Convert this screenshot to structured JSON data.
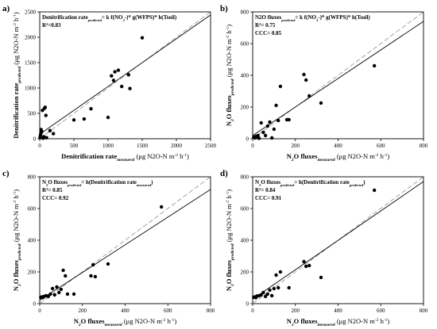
{
  "chart_data": [
    {
      "type": "scatter",
      "panel_label": "a)",
      "annotation_lines": [
        [
          {
            "t": "Denitrification rate"
          },
          {
            "t": "predicted",
            "sub": true
          },
          {
            "t": "= k f(NO"
          },
          {
            "t": "3",
            "sub": true
          },
          {
            "t": "-)* g(WFPS)* h(Tsoil)"
          }
        ],
        [
          {
            "t": "R"
          },
          {
            "t": "2",
            "sup": true
          },
          {
            "t": "=0.83"
          }
        ]
      ],
      "xlabel_parts": [
        {
          "t": "Denitrification rate"
        },
        {
          "t": "measured",
          "sub": true
        },
        {
          "t": " (μg N2O-N m",
          "unit": true
        },
        {
          "t": "-2",
          "sup": true,
          "unit": true
        },
        {
          "t": " h",
          "unit": true
        },
        {
          "t": "-1",
          "sup": true,
          "unit": true
        },
        {
          "t": ")",
          "unit": true
        }
      ],
      "ylabel_parts": [
        {
          "t": "Denitrification rate"
        },
        {
          "t": "predicted",
          "sub": true
        },
        {
          "t": " (μg N2O-N m",
          "unit": true
        },
        {
          "t": "-2",
          "sup": true,
          "unit": true
        },
        {
          "t": " h",
          "unit": true
        },
        {
          "t": "-1",
          "sup": true,
          "unit": true
        },
        {
          "t": ")",
          "unit": true
        }
      ],
      "xlim": [
        0,
        2500
      ],
      "ylim": [
        0,
        2500
      ],
      "xticks": [
        0,
        500,
        1000,
        1500,
        2000,
        2500
      ],
      "yticks": [
        0,
        500,
        1000,
        1500,
        2000,
        2500
      ],
      "points": [
        [
          5,
          20
        ],
        [
          10,
          60
        ],
        [
          15,
          100
        ],
        [
          20,
          180
        ],
        [
          30,
          140
        ],
        [
          50,
          10
        ],
        [
          60,
          40
        ],
        [
          40,
          560
        ],
        [
          70,
          600
        ],
        [
          80,
          620
        ],
        [
          100,
          20
        ],
        [
          90,
          460
        ],
        [
          150,
          160
        ],
        [
          200,
          100
        ],
        [
          500,
          370
        ],
        [
          650,
          390
        ],
        [
          750,
          590
        ],
        [
          1000,
          420
        ],
        [
          1050,
          1240
        ],
        [
          1080,
          1150
        ],
        [
          1100,
          1320
        ],
        [
          1150,
          1350
        ],
        [
          1200,
          1030
        ],
        [
          1300,
          1260
        ],
        [
          1320,
          990
        ],
        [
          1500,
          1990
        ]
      ],
      "fit_line": [
        [
          0,
          90
        ],
        [
          2500,
          2440
        ]
      ],
      "one_to_one": [
        [
          0,
          0
        ],
        [
          2500,
          2500
        ]
      ]
    },
    {
      "type": "scatter",
      "panel_label": "b)",
      "annotation_lines": [
        [
          {
            "t": "N2O fluxes"
          },
          {
            "t": "predicted",
            "sub": true
          },
          {
            "t": "= k f(NO"
          },
          {
            "t": "3",
            "sub": true
          },
          {
            "t": "-)* g(WFPS)* h(Tsoil)"
          }
        ],
        [
          {
            "t": "R"
          },
          {
            "t": "2",
            "sup": true
          },
          {
            "t": "= 0.75"
          }
        ],
        [
          {
            "t": "CCC= 0.85"
          }
        ]
      ],
      "xlabel_parts": [
        {
          "t": "N"
        },
        {
          "t": "2",
          "sub": true
        },
        {
          "t": "O fluxes"
        },
        {
          "t": "measured",
          "sub": true
        },
        {
          "t": " (μg N2O-N m",
          "unit": true
        },
        {
          "t": "-2",
          "sup": true,
          "unit": true
        },
        {
          "t": " h",
          "unit": true
        },
        {
          "t": "-1",
          "sup": true,
          "unit": true
        },
        {
          "t": ")",
          "unit": true
        }
      ],
      "ylabel_parts": [
        {
          "t": "N"
        },
        {
          "t": "2",
          "sub": true
        },
        {
          "t": "O fluxes"
        },
        {
          "t": "predicted",
          "sub": true
        },
        {
          "t": " (μg N2O-N m",
          "unit": true
        },
        {
          "t": "-2",
          "sup": true,
          "unit": true
        },
        {
          "t": " h",
          "unit": true
        },
        {
          "t": "-1",
          "sup": true,
          "unit": true
        },
        {
          "t": ")",
          "unit": true
        }
      ],
      "xlim": [
        0,
        800
      ],
      "ylim": [
        0,
        800
      ],
      "xticks": [
        0,
        200,
        400,
        600,
        800
      ],
      "yticks": [
        0,
        200,
        400,
        600,
        800
      ],
      "points": [
        [
          5,
          10
        ],
        [
          10,
          5
        ],
        [
          15,
          15
        ],
        [
          20,
          8
        ],
        [
          25,
          20
        ],
        [
          30,
          3
        ],
        [
          40,
          100
        ],
        [
          50,
          40
        ],
        [
          60,
          20
        ],
        [
          70,
          80
        ],
        [
          80,
          105
        ],
        [
          90,
          5
        ],
        [
          100,
          60
        ],
        [
          110,
          210
        ],
        [
          120,
          115
        ],
        [
          130,
          330
        ],
        [
          160,
          120
        ],
        [
          170,
          120
        ],
        [
          240,
          405
        ],
        [
          250,
          370
        ],
        [
          265,
          270
        ],
        [
          320,
          225
        ],
        [
          570,
          460
        ]
      ],
      "fit_line": [
        [
          0,
          20
        ],
        [
          800,
          740
        ]
      ],
      "one_to_one": [
        [
          0,
          0
        ],
        [
          800,
          800
        ]
      ]
    },
    {
      "type": "scatter",
      "panel_label": "c)",
      "annotation_lines": [
        [
          {
            "t": "N"
          },
          {
            "t": "2",
            "sub": true
          },
          {
            "t": "O fluxes"
          },
          {
            "t": "predicted",
            "sub": true
          },
          {
            "t": "= h(Denitrification rate"
          },
          {
            "t": "measured",
            "sub": true
          },
          {
            "t": ")"
          }
        ],
        [
          {
            "t": "R"
          },
          {
            "t": "2",
            "sup": true
          },
          {
            "t": "= 0.85"
          }
        ],
        [
          {
            "t": "CCC= 0.92"
          }
        ]
      ],
      "xlabel_parts": [
        {
          "t": "N"
        },
        {
          "t": "2",
          "sub": true
        },
        {
          "t": "O fluxes"
        },
        {
          "t": "measured",
          "sub": true
        },
        {
          "t": " (μg N2O-N m",
          "unit": true
        },
        {
          "t": "-2",
          "sup": true,
          "unit": true
        },
        {
          "t": " h",
          "unit": true
        },
        {
          "t": "-1",
          "sup": true,
          "unit": true
        },
        {
          "t": ")",
          "unit": true
        }
      ],
      "ylabel_parts": [
        {
          "t": "N"
        },
        {
          "t": "2",
          "sub": true
        },
        {
          "t": "O fluxes"
        },
        {
          "t": "predicted",
          "sub": true
        },
        {
          "t": " (μg N2O-N m",
          "unit": true
        },
        {
          "t": "-2",
          "sup": true,
          "unit": true
        },
        {
          "t": " h",
          "unit": true
        },
        {
          "t": "-1",
          "sup": true,
          "unit": true
        },
        {
          "t": ")",
          "unit": true
        }
      ],
      "xlim": [
        0,
        800
      ],
      "ylim": [
        0,
        800
      ],
      "xticks": [
        0,
        200,
        400,
        600,
        800
      ],
      "yticks": [
        0,
        200,
        400,
        600,
        800
      ],
      "points": [
        [
          5,
          40
        ],
        [
          10,
          42
        ],
        [
          15,
          38
        ],
        [
          20,
          45
        ],
        [
          30,
          50
        ],
        [
          40,
          45
        ],
        [
          50,
          60
        ],
        [
          60,
          95
        ],
        [
          70,
          55
        ],
        [
          80,
          105
        ],
        [
          90,
          70
        ],
        [
          100,
          90
        ],
        [
          110,
          210
        ],
        [
          120,
          175
        ],
        [
          130,
          60
        ],
        [
          160,
          60
        ],
        [
          240,
          175
        ],
        [
          250,
          245
        ],
        [
          260,
          170
        ],
        [
          320,
          250
        ],
        [
          570,
          610
        ]
      ],
      "fit_line": [
        [
          0,
          22
        ],
        [
          800,
          720
        ]
      ],
      "one_to_one": [
        [
          0,
          0
        ],
        [
          800,
          800
        ]
      ]
    },
    {
      "type": "scatter",
      "panel_label": "d)",
      "annotation_lines": [
        [
          {
            "t": "N"
          },
          {
            "t": "2",
            "sub": true
          },
          {
            "t": "O fluxes"
          },
          {
            "t": "predicted",
            "sub": true
          },
          {
            "t": "= h(Denitrification rate"
          },
          {
            "t": "predicted",
            "sub": true
          },
          {
            "t": ")"
          }
        ],
        [
          {
            "t": "R"
          },
          {
            "t": "2",
            "sup": true
          },
          {
            "t": "= 0.84"
          }
        ],
        [
          {
            "t": "CCC= 0.91"
          }
        ]
      ],
      "xlabel_parts": [
        {
          "t": "N"
        },
        {
          "t": "2",
          "sub": true
        },
        {
          "t": "O fluxes"
        },
        {
          "t": "measured",
          "sub": true
        },
        {
          "t": " (μg N2O-N m",
          "unit": true
        },
        {
          "t": "-2",
          "sup": true,
          "unit": true
        },
        {
          "t": " h",
          "unit": true
        },
        {
          "t": "-1",
          "sup": true,
          "unit": true
        },
        {
          "t": ")",
          "unit": true
        }
      ],
      "ylabel_parts": [
        {
          "t": "N"
        },
        {
          "t": "2",
          "sub": true
        },
        {
          "t": "O fluxes"
        },
        {
          "t": "predicted",
          "sub": true
        },
        {
          "t": " (μg N2O-N m",
          "unit": true
        },
        {
          "t": "-2",
          "sup": true,
          "unit": true
        },
        {
          "t": " h",
          "unit": true
        },
        {
          "t": "-1",
          "sup": true,
          "unit": true
        },
        {
          "t": ")",
          "unit": true
        }
      ],
      "xlim": [
        0,
        800
      ],
      "ylim": [
        0,
        800
      ],
      "xticks": [
        0,
        200,
        400,
        600,
        800
      ],
      "yticks": [
        0,
        200,
        400,
        600,
        800
      ],
      "points": [
        [
          5,
          40
        ],
        [
          10,
          42
        ],
        [
          15,
          38
        ],
        [
          20,
          48
        ],
        [
          30,
          50
        ],
        [
          40,
          55
        ],
        [
          50,
          70
        ],
        [
          60,
          45
        ],
        [
          70,
          60
        ],
        [
          80,
          85
        ],
        [
          90,
          50
        ],
        [
          100,
          95
        ],
        [
          110,
          180
        ],
        [
          120,
          100
        ],
        [
          130,
          200
        ],
        [
          170,
          100
        ],
        [
          240,
          265
        ],
        [
          250,
          235
        ],
        [
          265,
          240
        ],
        [
          320,
          165
        ],
        [
          570,
          715
        ]
      ],
      "fit_line": [
        [
          0,
          28
        ],
        [
          800,
          770
        ]
      ],
      "one_to_one": [
        [
          0,
          0
        ],
        [
          800,
          800
        ]
      ]
    }
  ]
}
